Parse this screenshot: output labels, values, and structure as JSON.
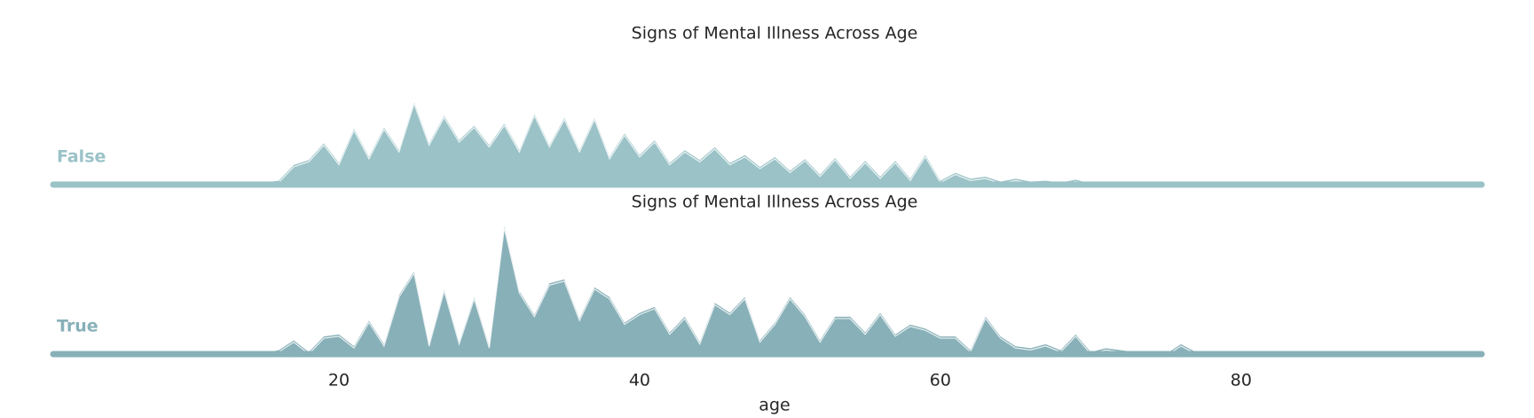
{
  "chart_data": [
    {
      "type": "area",
      "title": "Signs of Mental Illness Across Age",
      "row_label": "False",
      "color": "#9ac2c7",
      "x": [
        14,
        15,
        16,
        17,
        18,
        19,
        20,
        21,
        22,
        23,
        24,
        25,
        26,
        27,
        28,
        29,
        30,
        31,
        32,
        33,
        34,
        35,
        36,
        37,
        38,
        39,
        40,
        41,
        42,
        43,
        44,
        45,
        46,
        47,
        48,
        49,
        50,
        51,
        52,
        53,
        54,
        55,
        56,
        57,
        58,
        59,
        60,
        61,
        62,
        63,
        64,
        65,
        66,
        67,
        68,
        69,
        70,
        71,
        72,
        73,
        74,
        75,
        76,
        77,
        78
      ],
      "values": [
        0,
        0.001,
        0.002,
        0.01,
        0.0125,
        0.021,
        0.011,
        0.0285,
        0.014,
        0.029,
        0.0175,
        0.042,
        0.021,
        0.035,
        0.0225,
        0.03,
        0.02,
        0.031,
        0.0175,
        0.036,
        0.02,
        0.034,
        0.0175,
        0.034,
        0.014,
        0.026,
        0.015,
        0.0225,
        0.011,
        0.0175,
        0.0125,
        0.019,
        0.011,
        0.015,
        0.009,
        0.014,
        0.007,
        0.013,
        0.005,
        0.0135,
        0.004,
        0.012,
        0.004,
        0.012,
        0.003,
        0.015,
        0.002,
        0.006,
        0.003,
        0.004,
        0.0015,
        0.003,
        0.0015,
        0.002,
        0.001,
        0.0025,
        0.0005,
        0.001,
        0,
        0.0005,
        0,
        0,
        0.001,
        0,
        0
      ],
      "xlim": [
        1,
        96
      ],
      "ylim": [
        0,
        0.07
      ]
    },
    {
      "type": "area",
      "title": "Signs of Mental Illness Across Age",
      "row_label": "True",
      "color": "#88b0b8",
      "x": [
        14,
        15,
        16,
        17,
        18,
        19,
        20,
        21,
        22,
        23,
        24,
        25,
        26,
        27,
        28,
        29,
        30,
        31,
        32,
        33,
        34,
        35,
        36,
        37,
        38,
        39,
        40,
        41,
        42,
        43,
        44,
        45,
        46,
        47,
        48,
        49,
        50,
        51,
        52,
        53,
        54,
        55,
        56,
        57,
        58,
        59,
        60,
        61,
        62,
        63,
        64,
        65,
        66,
        67,
        68,
        69,
        70,
        71,
        72,
        73,
        74,
        75,
        76,
        77,
        78
      ],
      "values": [
        0,
        0.0005,
        0.002,
        0.007,
        0.001,
        0.009,
        0.01,
        0.004,
        0.017,
        0.005,
        0.03,
        0.042,
        0.005,
        0.033,
        0.006,
        0.029,
        0.004,
        0.065,
        0.032,
        0.02,
        0.036,
        0.038,
        0.018,
        0.034,
        0.029,
        0.016,
        0.021,
        0.024,
        0.011,
        0.019,
        0.006,
        0.026,
        0.021,
        0.029,
        0.007,
        0.016,
        0.029,
        0.02,
        0.007,
        0.019,
        0.019,
        0.011,
        0.021,
        0.01,
        0.015,
        0.013,
        0.009,
        0.009,
        0.002,
        0.019,
        0.009,
        0.004,
        0.003,
        0.005,
        0.002,
        0.01,
        0.001,
        0.003,
        0.002,
        0.001,
        0,
        0,
        0.005,
        0.001,
        0
      ],
      "xlim": [
        1,
        96
      ],
      "ylim": [
        0,
        0.07
      ],
      "xticks": [
        20,
        40,
        60,
        80
      ],
      "xlabel": "age"
    }
  ]
}
